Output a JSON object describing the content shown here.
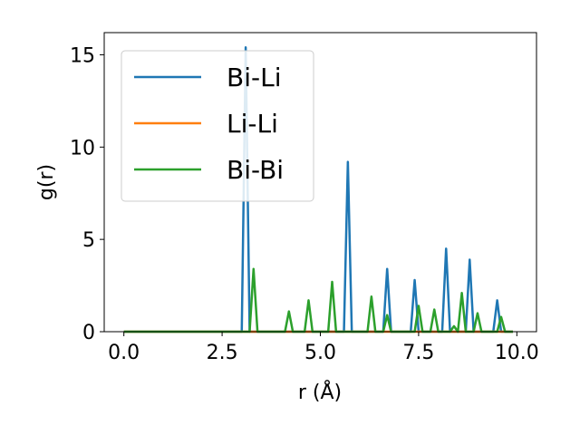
{
  "chart_data": {
    "type": "line",
    "title": "",
    "xlabel": "r (Å)",
    "ylabel": "g(r)",
    "xlim": [
      -0.5,
      10.5
    ],
    "ylim": [
      0,
      16.2
    ],
    "xticks": [
      "0.0",
      "2.5",
      "5.0",
      "7.5",
      "10.0"
    ],
    "xtick_values": [
      0,
      2.5,
      5,
      7.5,
      10
    ],
    "yticks": [
      "0",
      "5",
      "10",
      "15"
    ],
    "ytick_values": [
      0,
      5,
      10,
      15
    ],
    "grid": false,
    "legend_placement": "upper-left",
    "series": [
      {
        "name": "Bi-Li",
        "color": "#1f77b4",
        "x": [
          0,
          3.0,
          3.1,
          3.2,
          5.6,
          5.7,
          5.8,
          6.6,
          6.7,
          6.8,
          7.3,
          7.4,
          7.5,
          8.1,
          8.2,
          8.3,
          8.7,
          8.8,
          8.9,
          9.4,
          9.5,
          9.6,
          9.9
        ],
        "y": [
          0,
          0,
          15.4,
          0,
          0,
          9.2,
          0,
          0,
          3.4,
          0,
          0,
          2.8,
          0,
          0,
          4.5,
          0,
          0,
          3.9,
          0,
          0,
          1.7,
          0,
          0
        ]
      },
      {
        "name": "Li-Li",
        "color": "#ff7f0e",
        "x": [
          0,
          9.9
        ],
        "y": [
          0,
          0
        ]
      },
      {
        "name": "Bi-Bi",
        "color": "#2ca02c",
        "x": [
          0,
          3.2,
          3.3,
          3.4,
          4.1,
          4.2,
          4.3,
          4.6,
          4.7,
          4.8,
          5.2,
          5.3,
          5.4,
          6.2,
          6.3,
          6.4,
          6.6,
          6.7,
          6.8,
          7.4,
          7.5,
          7.6,
          7.8,
          7.9,
          8.0,
          8.3,
          8.4,
          8.5,
          8.6,
          8.7,
          8.9,
          9.0,
          9.1,
          9.5,
          9.6,
          9.7,
          9.9
        ],
        "y": [
          0,
          0,
          3.4,
          0,
          0,
          1.1,
          0,
          0,
          1.7,
          0,
          0,
          2.7,
          0,
          0,
          1.9,
          0,
          0,
          0.9,
          0,
          0,
          1.4,
          0,
          0,
          1.2,
          0,
          0,
          0.3,
          0,
          2.1,
          0,
          0,
          1.0,
          0,
          0,
          0.8,
          0,
          0
        ]
      }
    ]
  }
}
